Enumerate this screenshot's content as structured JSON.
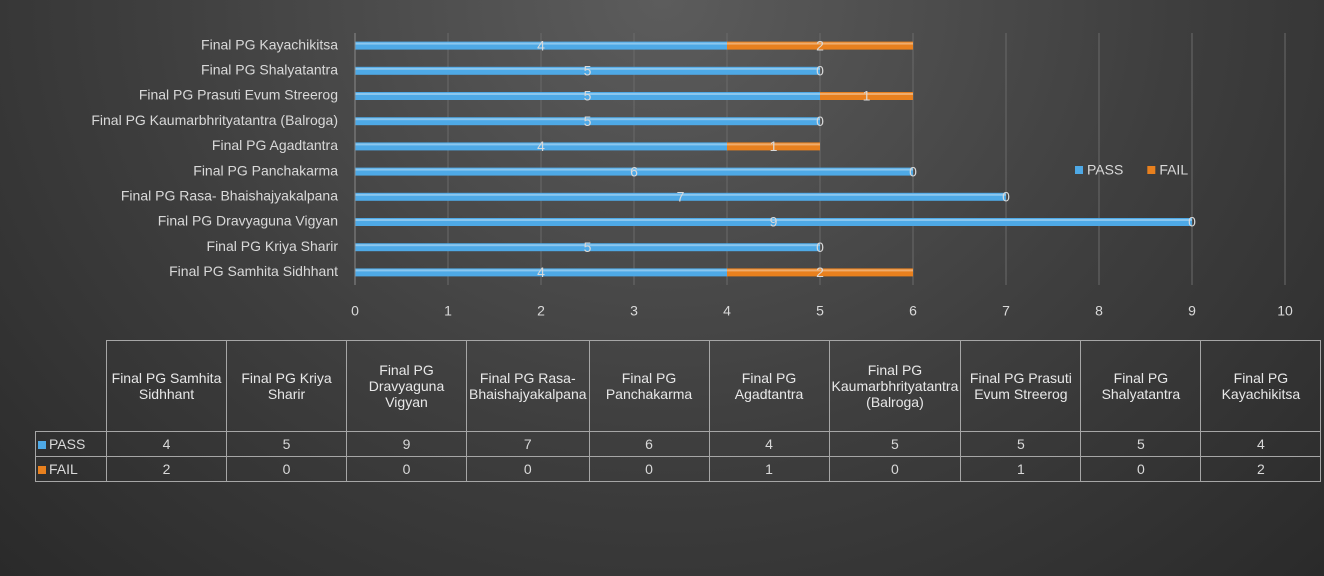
{
  "chart_data": {
    "type": "bar",
    "orientation": "horizontal",
    "stacked": true,
    "categories": [
      "Final PG Samhita Sidhhant",
      "Final PG Kriya Sharir",
      "Final PG Dravyaguna Vigyan",
      "Final PG Rasa- Bhaishajyakalpana",
      "Final PG Panchakarma",
      "Final PG Agadtantra",
      "Final PG Kaumarbhrityatantra (Balroga)",
      "Final PG Prasuti Evum Streerog",
      "Final PG Shalyatantra",
      "Final PG Kayachikitsa"
    ],
    "series": [
      {
        "name": "PASS",
        "color": "#4ea9e6",
        "values": [
          4,
          5,
          9,
          7,
          6,
          4,
          5,
          5,
          5,
          4
        ]
      },
      {
        "name": "FAIL",
        "color": "#e8801e",
        "values": [
          2,
          0,
          0,
          0,
          0,
          1,
          0,
          1,
          0,
          2
        ]
      }
    ],
    "xlim": [
      0,
      10
    ],
    "xticks": [
      0,
      1,
      2,
      3,
      4,
      5,
      6,
      7,
      8,
      9,
      10
    ],
    "grid": true,
    "legend": "right",
    "data_table": true
  }
}
